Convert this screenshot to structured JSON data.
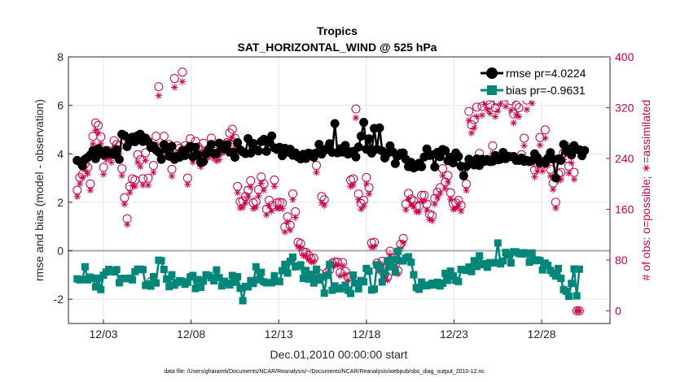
{
  "chart_data": {
    "type": "line",
    "title": "Tropics",
    "subtitle": "SAT_HORIZONTAL_WIND @ 525 hPa",
    "xlabel": "Dec.01,2010 00:00:00 start",
    "ylabel_left": "rmse and bias (model - observation)",
    "ylabel_right": "# of obs: o=possible; ∗=assimilated",
    "footnote": "data file: /Users/gharamti/Documents/NCAR/Reanalysis/~/Documents/NCAR/Reanalysis/webpub/obs_diag_output_2010-12.nc",
    "xlim": [
      1.0,
      31.9
    ],
    "ylim_left": [
      -3,
      8
    ],
    "ylim_right": [
      -20,
      400
    ],
    "x_ticks": [
      3,
      8,
      13,
      18,
      23,
      28
    ],
    "x_tick_labels": [
      "12/03",
      "12/08",
      "12/13",
      "12/18",
      "12/23",
      "12/28"
    ],
    "y_ticks_left": [
      -2,
      0,
      2,
      4,
      6,
      8
    ],
    "y_tick_labels_left": [
      "-2",
      "0",
      "2",
      "4",
      "6",
      "8"
    ],
    "y_ticks_right": [
      0,
      80,
      160,
      240,
      320,
      400
    ],
    "y_tick_labels_right": [
      "0",
      "80",
      "160",
      "240",
      "320",
      "400"
    ],
    "colors": {
      "rmse": "#000000",
      "bias": "#00877a",
      "obs": "#cc0044",
      "zero_line": "#aaaaaa"
    },
    "legend_position": "top-right",
    "series": [
      {
        "name": "rmse pr=4.0224",
        "axis": "left",
        "marker": "circle",
        "values": [
          3.73,
          3.68,
          3.51,
          3.78,
          3.85,
          3.95,
          4.14,
          3.8,
          4.21,
          4.02,
          3.96,
          4.14,
          4.01,
          4.04,
          3.97,
          4.18,
          3.77,
          4.81,
          4.75,
          4.3,
          4.49,
          4.69,
          4.5,
          4.75,
          4.81,
          4.51,
          4.65,
          4.51,
          4.26,
          4.32,
          4.16,
          4.07,
          3.77,
          4.38,
          4.18,
          3.9,
          4.31,
          3.77,
          3.9,
          3.86,
          4.14,
          3.93,
          4.19,
          4.31,
          3.87,
          4.27,
          3.96,
          3.65,
          3.68,
          4.0,
          4.17,
          4.39,
          4.02,
          4.0,
          4.44,
          4.29,
          4.21,
          4.38,
          4.07,
          4.07,
          3.86,
          4.46,
          4.17,
          4.08,
          4.01,
          4.63,
          4.03,
          4.43,
          4.17,
          4.12,
          4.51,
          4.6,
          4.1,
          4.47,
          4.74,
          4.25,
          4.18,
          4.27,
          3.92,
          4.23,
          4.07,
          4.19,
          3.94,
          4.04,
          3.87,
          3.79,
          3.98,
          3.81,
          4.03,
          4.0,
          3.86,
          4.04,
          4.39,
          3.99,
          4.14,
          4.21,
          4.42,
          4.06,
          5.25,
          4.04,
          4.21,
          4.07,
          4.35,
          3.99,
          4.08,
          4.1,
          3.87,
          4.28,
          4.73,
          5.3,
          4.19,
          4.62,
          4.03,
          5.05,
          4.19,
          5.07,
          4.12,
          3.83,
          4.02,
          4.33,
          4.08,
          3.6,
          3.91,
          4.02,
          4.04,
          3.78,
          3.47,
          3.65,
          3.42,
          3.47,
          3.61,
          3.47,
          3.87,
          4.2,
          3.93,
          3.96,
          3.46,
          4.06,
          3.88,
          4.18,
          4.13,
          3.71,
          3.86,
          3.63,
          4.04,
          3.89,
          3.49,
          3.09,
          3.48,
          3.78,
          3.7,
          3.54,
          3.79,
          3.52,
          3.78,
          3.69,
          3.77,
          3.68,
          3.69,
          3.93,
          3.75,
          3.78,
          4.06,
          3.8,
          3.9,
          3.88,
          3.89,
          3.73,
          3.73,
          3.83,
          3.69,
          3.73,
          3.68,
          3.72,
          4.0,
          3.85,
          3.63,
          3.68,
          3.62,
          3.82,
          4.05,
          3.78,
          3.01,
          3.79,
          3.73,
          4.39,
          4.11,
          4.2,
          3.97,
          4.34,
          4.18,
          4.17,
          3.92,
          4.14
        ]
      },
      {
        "name": "bias pr=-0.9631",
        "axis": "left",
        "marker": "square",
        "values": [
          -1.16,
          -1.2,
          -1.18,
          -0.66,
          -1.2,
          -1.09,
          -1.14,
          -1.49,
          -1.13,
          -1.6,
          -1.01,
          -0.88,
          -0.77,
          -0.83,
          -0.87,
          -0.78,
          -1.32,
          -1.15,
          -1.14,
          -1.15,
          -1.13,
          -1.2,
          -0.86,
          -0.76,
          -0.76,
          -0.78,
          -1.43,
          -1.37,
          -1.46,
          -1.07,
          -1.33,
          -0.39,
          -0.41,
          -0.77,
          -1.17,
          -1.48,
          -0.99,
          -1.42,
          -1.31,
          -1.24,
          -1.26,
          -1.38,
          -1.3,
          -1.08,
          -1.02,
          -1.56,
          -1.19,
          -1.51,
          -1.25,
          -0.99,
          -1.02,
          -1.11,
          -1.24,
          -0.79,
          -1.11,
          -1.45,
          -1.26,
          -1.35,
          -1.41,
          -1.02,
          -1.3,
          -1.07,
          -1.55,
          -2.06,
          -1.47,
          -1.49,
          -1.23,
          -1.35,
          -0.66,
          -1.2,
          -0.89,
          -1.28,
          -1.32,
          -1.32,
          -1.32,
          -1.03,
          -1.26,
          -1.27,
          -0.82,
          -0.56,
          -0.92,
          -0.44,
          -0.26,
          -0.66,
          -0.63,
          -0.58,
          -1.14,
          -0.81,
          -1.17,
          -0.97,
          -1.33,
          -0.76,
          -1.21,
          -1.09,
          -1.75,
          -1.02,
          -0.56,
          -1.63,
          -1.45,
          -1.56,
          -1.57,
          -1.52,
          -1.42,
          -1.63,
          -1.76,
          -1.0,
          -1.33,
          -1.57,
          -1.23,
          -1.28,
          -0.73,
          -0.84,
          -1.62,
          -1.58,
          -0.58,
          -0.66,
          -1.29,
          -0.89,
          -0.41,
          -0.66,
          -0.37,
          -0.88,
          -0.02,
          -0.41,
          -0.42,
          -0.3,
          -0.25,
          -0.47,
          -0.99,
          -1.52,
          -1.59,
          -1.29,
          -1.44,
          -1.44,
          -1.41,
          -1.34,
          -1.41,
          -1.3,
          -1.45,
          -1.34,
          -0.93,
          -1.22,
          -0.84,
          -1.04,
          -1.22,
          -1.27,
          -0.77,
          -0.78,
          -0.81,
          -0.67,
          -0.86,
          -0.41,
          -0.65,
          -0.21,
          -0.57,
          -0.53,
          -0.68,
          -0.49,
          -0.5,
          -0.49,
          0.32,
          -0.54,
          -0.42,
          -0.07,
          -0.18,
          -0.5,
          -0.04,
          -0.05,
          -0.11,
          -0.13,
          -0.08,
          -0.12,
          -0.47,
          -0.09,
          -0.41,
          -0.38,
          -0.4,
          -0.79,
          -0.51,
          -0.6,
          -0.81,
          -0.93,
          -1.04,
          -0.73,
          -1.14,
          -1.6,
          -1.67,
          -1.88,
          -1.35,
          -0.75,
          -1.86,
          -0.76
        ]
      },
      {
        "name": "possible",
        "axis": "right",
        "marker": "circle-open",
        "values": [
          190,
          210,
          215,
          232,
          226,
          200,
          275,
          296,
          292,
          274,
          226,
          250,
          252,
          246,
          268,
          262,
          260,
          224,
          178,
          145,
          196,
          208,
          206,
          246,
          238,
          208,
          249,
          209,
          46,
          229,
          275,
          353,
          257,
          275,
          258,
          262,
          223,
          366,
          260,
          256,
          376,
          260,
          209,
          271,
          245,
          267,
          258,
          238,
          264,
          249,
          254,
          272,
          251,
          248,
          249,
          261,
          262,
          265,
          280,
          286,
          272,
          196,
          172,
          173,
          180,
          190,
          205,
          170,
          172,
          191,
          211,
          200,
          160,
          174,
          166,
          206,
          170,
          171,
          170,
          132,
          148,
          135,
          184,
          156,
          108,
          106,
          93,
          92,
          87,
          82,
          83,
          229,
          59,
          180,
          175,
          60,
          65,
          75,
          77,
          77,
          60,
          76,
          62,
          53,
          206,
          208,
          318,
          184,
          169,
          174,
          210,
          194,
          107,
          108,
          75,
          67,
          78,
          58,
          53,
          94,
          82,
          73,
          63,
          105,
          114,
          168,
          185,
          176,
          173,
          165,
          165,
          182,
          182,
          168,
          152,
          150,
          177,
          187,
          194,
          224,
          203,
          213,
          186,
          169,
          170,
          174,
          166,
          222,
          200,
          314,
          293,
          301,
          321,
          248,
          322,
          340,
          332,
          325,
          260,
          320,
          330,
          341,
          373,
          337,
          365,
          331,
          310,
          324,
          320,
          246,
          272,
          332,
          360,
          342,
          222,
          231,
          273,
          231,
          285,
          240,
          223,
          201,
          171,
          216,
          218,
          249,
          259,
          228,
          245,
          218,
          0,
          0
        ]
      },
      {
        "name": "assimilated",
        "axis": "right",
        "marker": "asterisk",
        "values": [
          180,
          200,
          210,
          222,
          216,
          190,
          263,
          284,
          280,
          263,
          215,
          238,
          241,
          234,
          256,
          250,
          248,
          213,
          168,
          136,
          186,
          197,
          196,
          234,
          227,
          198,
          237,
          198,
          39,
          218,
          263,
          339,
          245,
          263,
          246,
          250,
          212,
          352,
          248,
          244,
          361,
          248,
          199,
          259,
          234,
          255,
          246,
          227,
          252,
          238,
          242,
          259,
          240,
          236,
          238,
          249,
          250,
          253,
          267,
          273,
          260,
          186,
          162,
          163,
          170,
          180,
          195,
          161,
          163,
          181,
          201,
          190,
          151,
          165,
          157,
          196,
          161,
          162,
          161,
          124,
          140,
          127,
          175,
          147,
          101,
          99,
          87,
          86,
          81,
          77,
          77,
          218,
          55,
          170,
          166,
          55,
          60,
          70,
          72,
          72,
          55,
          71,
          57,
          48,
          196,
          198,
          304,
          175,
          160,
          165,
          200,
          184,
          100,
          101,
          70,
          62,
          73,
          54,
          48,
          88,
          76,
          68,
          58,
          98,
          107,
          159,
          176,
          167,
          164,
          156,
          156,
          173,
          173,
          159,
          144,
          142,
          168,
          178,
          185,
          213,
          193,
          203,
          176,
          160,
          161,
          165,
          157,
          211,
          190,
          300,
          280,
          288,
          306,
          236,
          308,
          325,
          317,
          311,
          248,
          306,
          315,
          326,
          357,
          322,
          350,
          316,
          296,
          309,
          306,
          235,
          260,
          317,
          344,
          327,
          211,
          220,
          261,
          220,
          272,
          229,
          212,
          191,
          162,
          205,
          207,
          238,
          247,
          217,
          233,
          207,
          0,
          0
        ]
      }
    ]
  }
}
